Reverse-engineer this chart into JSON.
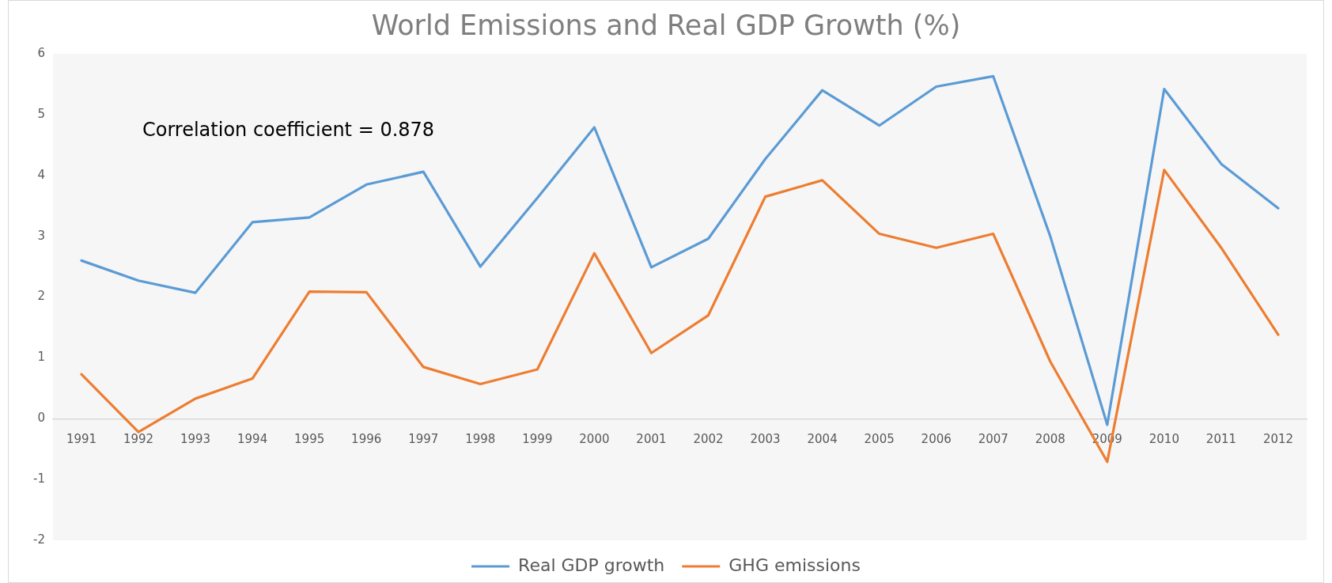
{
  "chart_data": {
    "type": "line",
    "title": "World Emissions and Real GDP Growth (%)",
    "categories": [
      "1991",
      "1992",
      "1993",
      "1994",
      "1995",
      "1996",
      "1997",
      "1998",
      "1999",
      "2000",
      "2001",
      "2002",
      "2003",
      "2004",
      "2005",
      "2006",
      "2007",
      "2008",
      "2009",
      "2010",
      "2011",
      "2012"
    ],
    "series": [
      {
        "name": "Real GDP growth",
        "color": "#5b9bd5",
        "values": [
          2.6,
          2.27,
          2.07,
          3.23,
          3.31,
          3.85,
          4.06,
          2.5,
          3.63,
          4.79,
          2.49,
          2.96,
          4.27,
          5.4,
          4.82,
          5.46,
          5.63,
          3.0,
          -0.1,
          5.42,
          4.19,
          3.46
        ]
      },
      {
        "name": "GHG emissions",
        "color": "#ed7d31",
        "values": [
          0.73,
          -0.22,
          0.33,
          0.66,
          2.09,
          2.08,
          0.85,
          0.57,
          0.81,
          2.72,
          1.08,
          1.7,
          3.65,
          3.92,
          3.04,
          2.81,
          3.04,
          0.94,
          -0.71,
          4.09,
          2.81,
          1.38
        ]
      }
    ],
    "ylim": [
      -2,
      6
    ],
    "yticks": [
      -2,
      -1,
      0,
      1,
      2,
      3,
      4,
      5,
      6
    ],
    "legend": "bottom",
    "marker": "none",
    "line_style": "solid",
    "annotations": [
      "Correlation coefficient = 0.878"
    ]
  }
}
